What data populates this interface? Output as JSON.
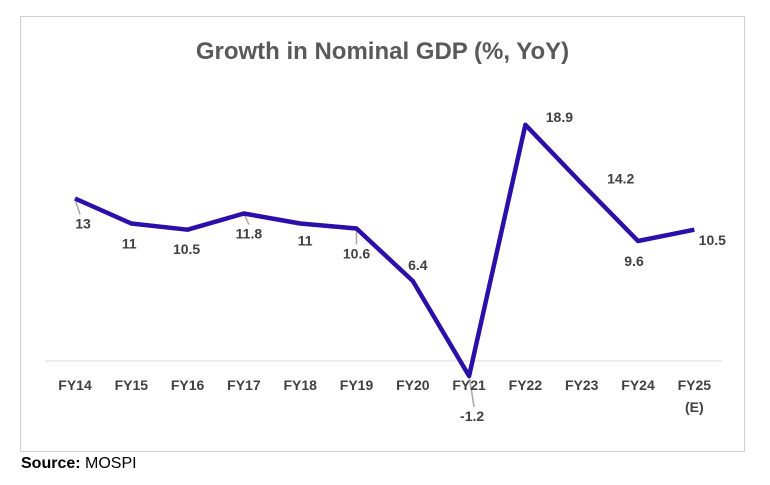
{
  "chart_data": {
    "type": "line",
    "title": "Growth in Nominal GDP (%, YoY)",
    "categories": [
      "FY14",
      "FY15",
      "FY16",
      "FY17",
      "FY18",
      "FY19",
      "FY20",
      "FY21",
      "FY22",
      "FY23",
      "FY24",
      "FY25"
    ],
    "category_notes": [
      "",
      "",
      "",
      "",
      "",
      "",
      "",
      "",
      "",
      "",
      "",
      "(E)"
    ],
    "series": [
      {
        "name": "Nominal GDP growth",
        "values": [
          13,
          11,
          10.5,
          11.8,
          11,
          10.6,
          6.4,
          -1.2,
          18.9,
          14.2,
          9.6,
          10.5
        ],
        "labels": [
          "13",
          "11",
          "10.5",
          "11.8",
          "11",
          "10.6",
          "6.4",
          "-1.2",
          "18.9",
          "14.2",
          "9.6",
          "10.5"
        ],
        "color": "#2a0fa8"
      }
    ],
    "xlabel": "",
    "ylabel": "",
    "ylim": [
      -1.2,
      20.4
    ],
    "grid": false,
    "legend": "none"
  },
  "source": {
    "label": "Source:",
    "text": " MOSPI"
  }
}
